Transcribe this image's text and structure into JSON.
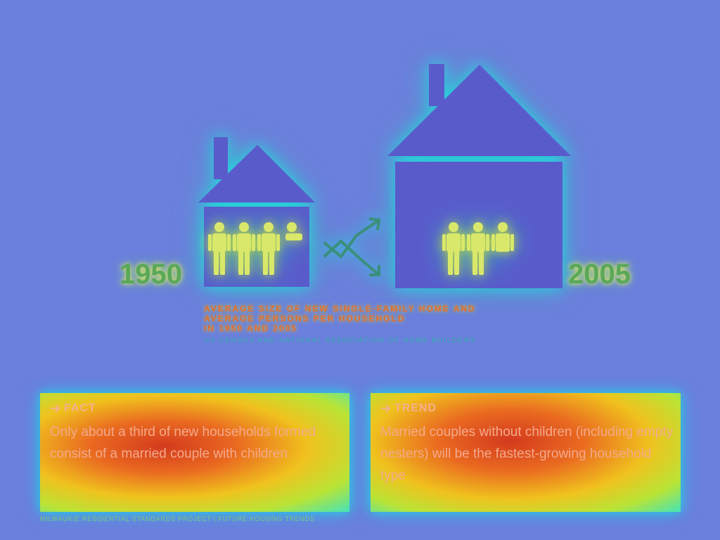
{
  "years": {
    "left": "1950",
    "right": "2005"
  },
  "caption": {
    "line1": "AVERAGE SIZE OF NEW SINGLE-FAMILY HOME AND",
    "line2": "AVERAGE PERSONS PER HOUSEHOLD",
    "line3": "IN 1950 AND 2005",
    "source": "US CENSUS AND NATIONAL ASSOCIATION OF HOME BUILDERS"
  },
  "fact": {
    "label": "FACT",
    "text": "Only about a third of new households formed consist of a married couple with children"
  },
  "trend": {
    "label": "TREND",
    "text": "Married couples without children (including empty nesters) will be the fastest-growing household type"
  },
  "footer": "MILWAUKIE RESIDENTIAL STANDARDS PROJECT | FUTURE HOUSING TRENDS",
  "icons": [
    "house-1950-icon",
    "house-2005-icon",
    "people-icon",
    "trend-arrows-icon",
    "arrow-right-icon"
  ],
  "colors": {
    "background": "#6b7fdc",
    "house": "#5a5bcb",
    "people": "#d9e86a"
  }
}
